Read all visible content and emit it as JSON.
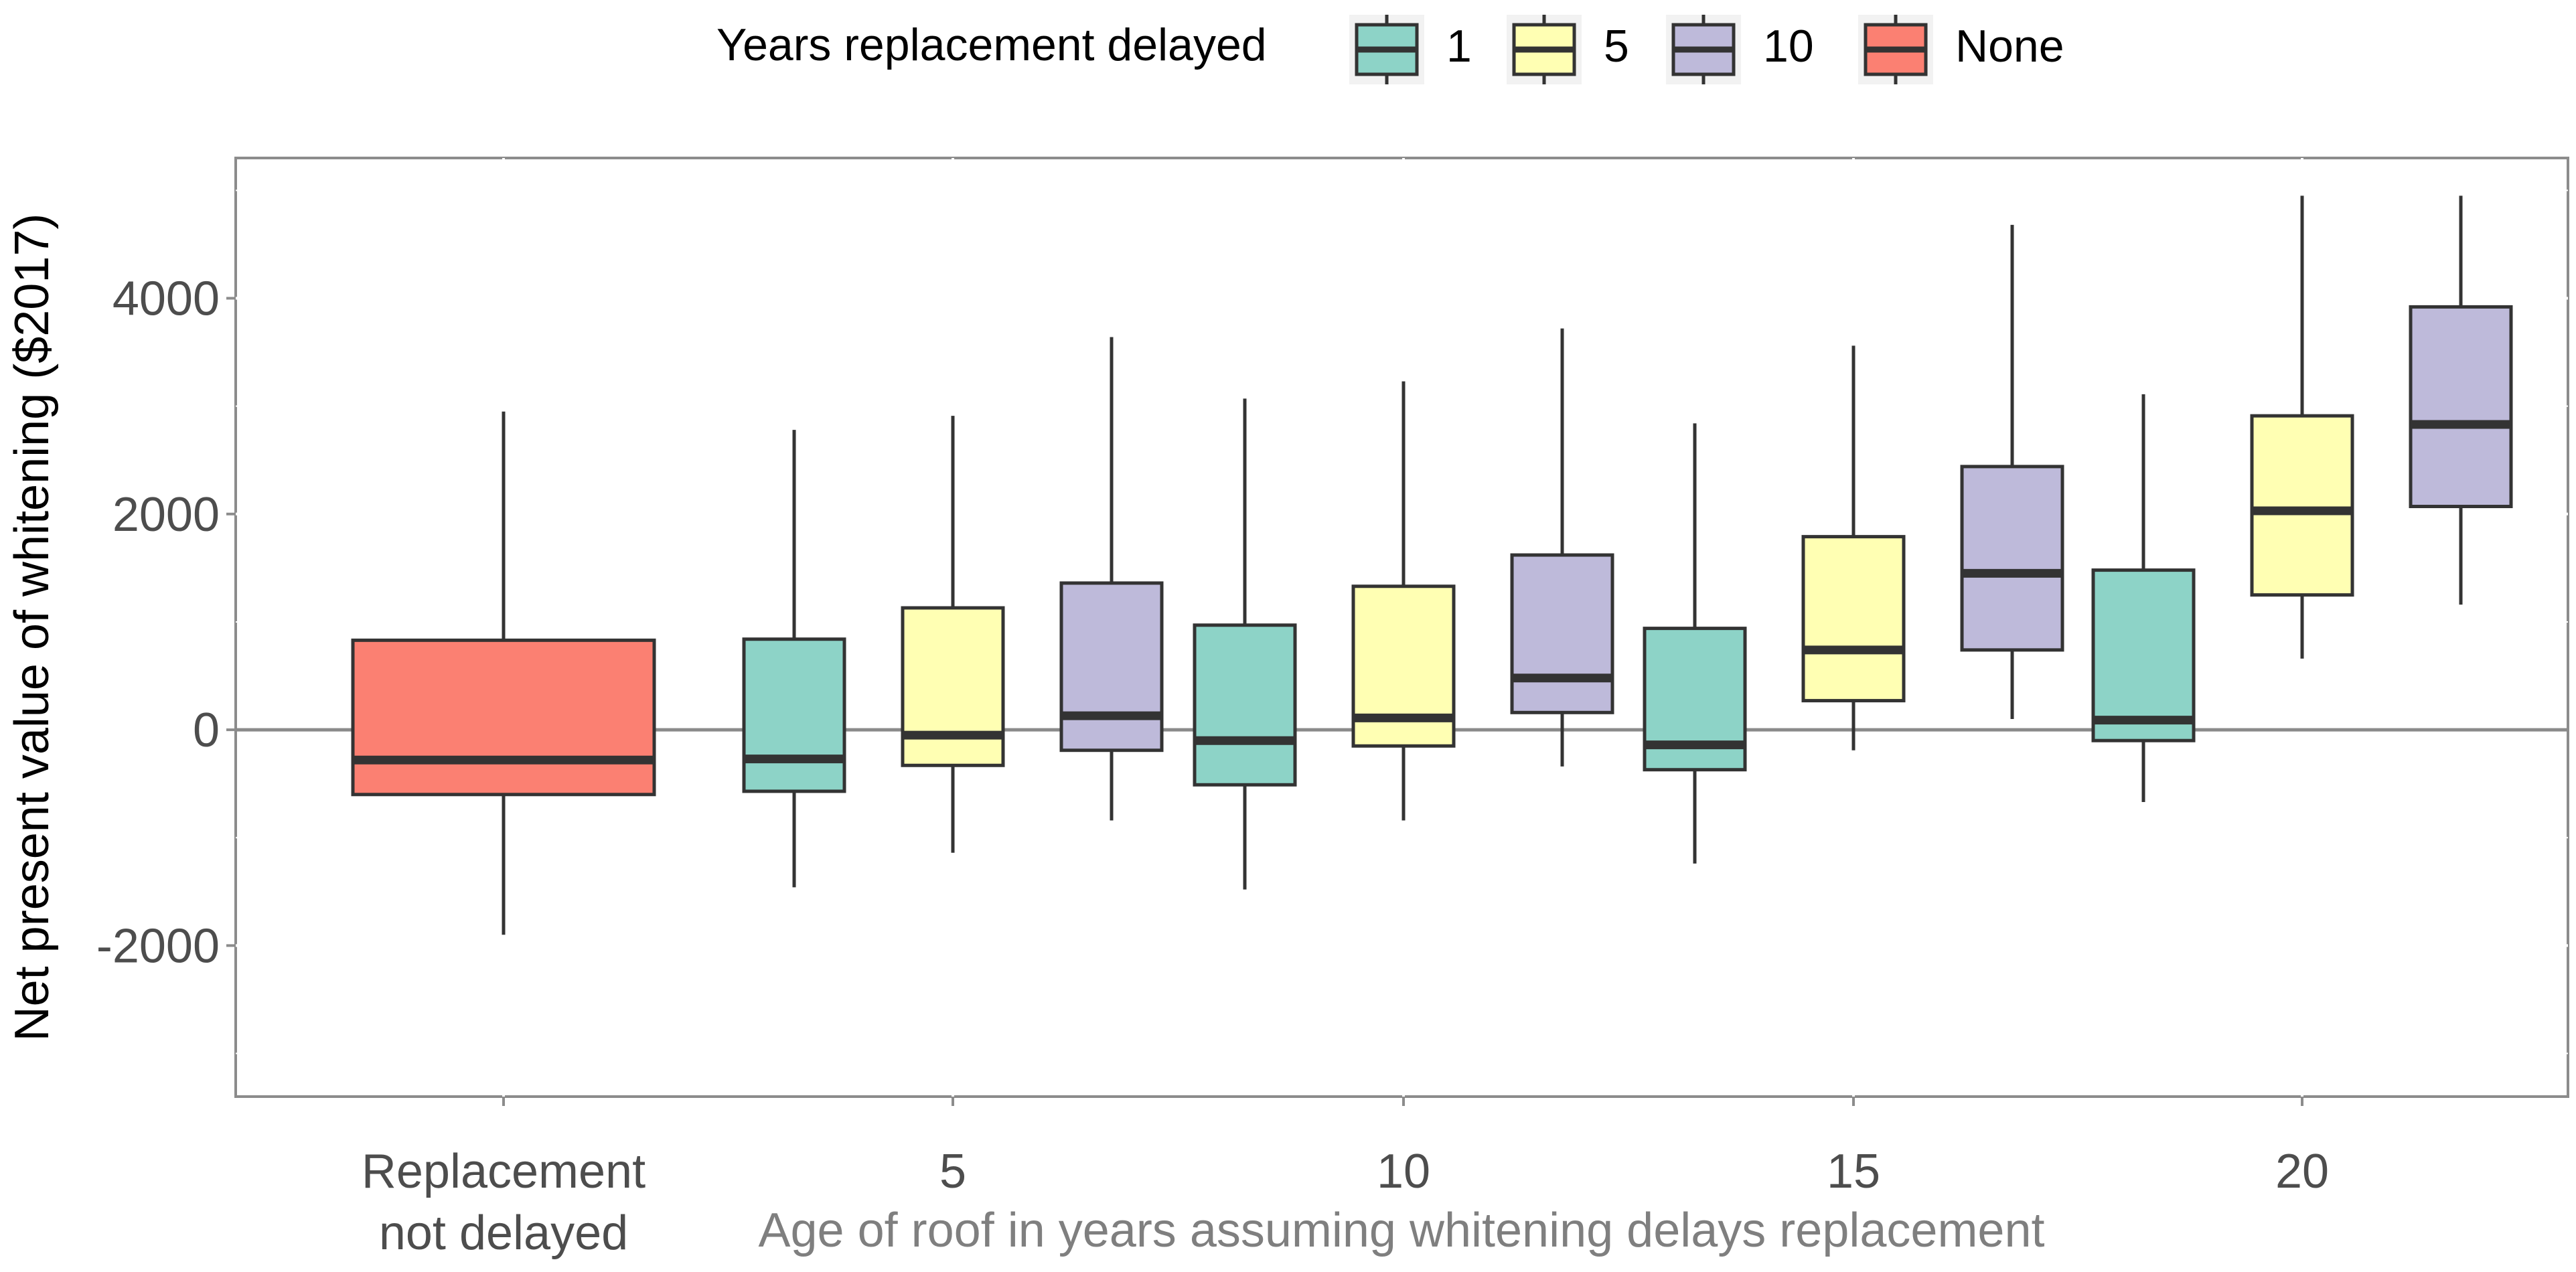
{
  "chart_data": {
    "type": "boxplot",
    "title": "",
    "xlabel": "Age of roof in years assuming whitening delays replacement",
    "ylabel": "Net present value of whitening ($2017)",
    "ylim": [
      -3400,
      5300
    ],
    "yticks": [
      -2000,
      0,
      2000,
      4000
    ],
    "yticklabels": [
      "-2000",
      "0",
      "2000",
      "4000"
    ],
    "zero_line": 0,
    "legend": {
      "title": "Years replacement delayed",
      "position": "top",
      "entries": [
        {
          "label": "1",
          "color": "#8dd3c7"
        },
        {
          "label": "5",
          "color": "#ffffb3"
        },
        {
          "label": "10",
          "color": "#bebada"
        },
        {
          "label": "None",
          "color": "#fb8072"
        }
      ]
    },
    "categories": [
      {
        "label": "Replacement not delayed",
        "label_lines": [
          "Replacement",
          "not delayed"
        ],
        "muted": true
      },
      {
        "label": "5",
        "label_lines": [
          "5"
        ],
        "muted": false
      },
      {
        "label": "10",
        "label_lines": [
          "10"
        ],
        "muted": false
      },
      {
        "label": "15",
        "label_lines": [
          "15"
        ],
        "muted": false
      },
      {
        "label": "20",
        "label_lines": [
          "20"
        ],
        "muted": false
      }
    ],
    "groups": [
      {
        "category": "Replacement not delayed",
        "boxes": [
          {
            "series": "None",
            "color": "#fb8072",
            "whisker_low": -1900,
            "q1": -600,
            "median": -280,
            "q3": 830,
            "whisker_high": 2950
          }
        ]
      },
      {
        "category": "5",
        "boxes": [
          {
            "series": "1",
            "color": "#8dd3c7",
            "whisker_low": -1460,
            "q1": -570,
            "median": -270,
            "q3": 840,
            "whisker_high": 2780
          },
          {
            "series": "5",
            "color": "#ffffb3",
            "whisker_low": -1140,
            "q1": -330,
            "median": -50,
            "q3": 1130,
            "whisker_high": 2910
          },
          {
            "series": "10",
            "color": "#bebada",
            "whisker_low": -840,
            "q1": -190,
            "median": 130,
            "q3": 1360,
            "whisker_high": 3640
          }
        ]
      },
      {
        "category": "10",
        "boxes": [
          {
            "series": "1",
            "color": "#8dd3c7",
            "whisker_low": -1480,
            "q1": -510,
            "median": -100,
            "q3": 970,
            "whisker_high": 3070
          },
          {
            "series": "5",
            "color": "#ffffb3",
            "whisker_low": -840,
            "q1": -150,
            "median": 110,
            "q3": 1330,
            "whisker_high": 3230
          },
          {
            "series": "10",
            "color": "#bebada",
            "whisker_low": -340,
            "q1": 160,
            "median": 480,
            "q3": 1620,
            "whisker_high": 3720
          }
        ]
      },
      {
        "category": "15",
        "boxes": [
          {
            "series": "1",
            "color": "#8dd3c7",
            "whisker_low": -1240,
            "q1": -370,
            "median": -140,
            "q3": 940,
            "whisker_high": 2840
          },
          {
            "series": "5",
            "color": "#ffffb3",
            "whisker_low": -190,
            "q1": 270,
            "median": 740,
            "q3": 1790,
            "whisker_high": 3560
          },
          {
            "series": "10",
            "color": "#bebada",
            "whisker_low": 100,
            "q1": 740,
            "median": 1450,
            "q3": 2440,
            "whisker_high": 4680
          }
        ]
      },
      {
        "category": "20",
        "boxes": [
          {
            "series": "1",
            "color": "#8dd3c7",
            "whisker_low": -670,
            "q1": -100,
            "median": 90,
            "q3": 1480,
            "whisker_high": 3110
          },
          {
            "series": "5",
            "color": "#ffffb3",
            "whisker_low": 660,
            "q1": 1250,
            "median": 2030,
            "q3": 2910,
            "whisker_high": 4950
          },
          {
            "series": "10",
            "color": "#bebada",
            "whisker_low": 1160,
            "q1": 2070,
            "median": 2830,
            "q3": 3920,
            "whisker_high": 4950
          }
        ]
      }
    ]
  }
}
